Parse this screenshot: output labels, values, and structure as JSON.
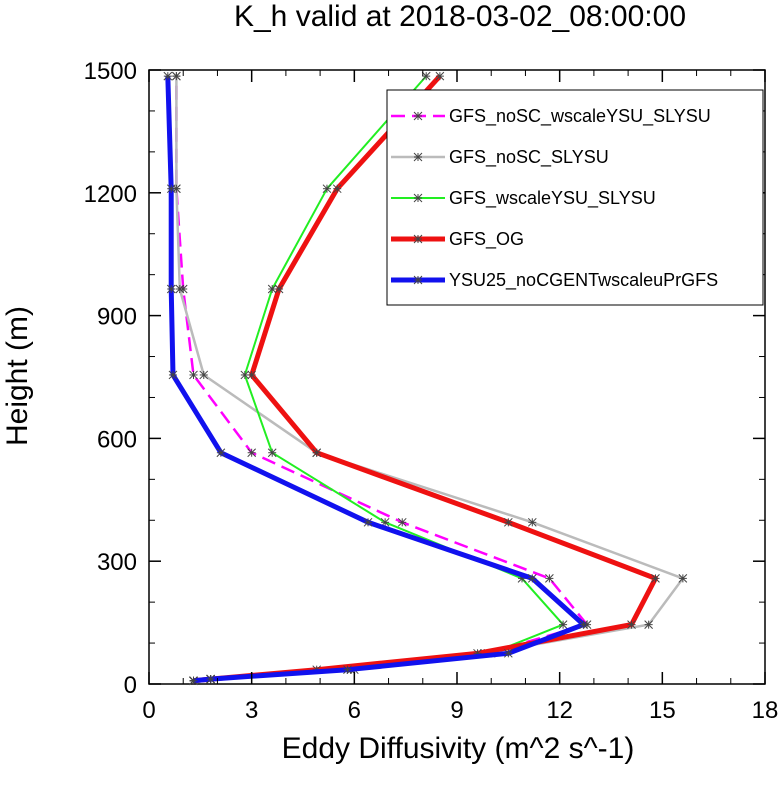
{
  "chart_data": {
    "type": "line",
    "title": "K_h valid at 2018-03-02_08:00:00",
    "xlabel": "Eddy Diffusivity (m^2 s^-1)",
    "ylabel": "Height (m)",
    "xlim": [
      0,
      18
    ],
    "ylim": [
      0,
      1500
    ],
    "xticks": [
      0,
      3,
      6,
      9,
      12,
      15,
      18
    ],
    "yticks": [
      0,
      300,
      600,
      900,
      1200,
      1500
    ],
    "legend_position": "top-right",
    "series": [
      {
        "name": "GFS_noSC_wscaleYSU_SLYSU",
        "color": "#ff00ff",
        "dash": "dashed",
        "width": "medium",
        "x": [
          1.3,
          1.8,
          5.9,
          9.9,
          12.8,
          11.7,
          7.4,
          3.0,
          1.3,
          1.0,
          0.8,
          0.8
        ],
        "y": [
          8,
          12,
          35,
          75,
          145,
          258,
          395,
          565,
          755,
          965,
          1210,
          1485
        ]
      },
      {
        "name": "GFS_noSC_SLYSU",
        "color": "#bbbbbb",
        "dash": "solid",
        "width": "medium",
        "x": [
          1.3,
          1.8,
          6.0,
          9.8,
          14.6,
          15.6,
          11.2,
          4.9,
          1.6,
          0.9,
          0.8,
          0.8
        ],
        "y": [
          8,
          12,
          35,
          75,
          145,
          258,
          395,
          565,
          755,
          965,
          1210,
          1485
        ]
      },
      {
        "name": "GFS_wscaleYSU_SLYSU",
        "color": "#22ee22",
        "dash": "solid",
        "width": "thin",
        "x": [
          1.3,
          1.8,
          5.9,
          10.0,
          12.1,
          10.9,
          6.9,
          3.6,
          2.8,
          3.6,
          5.2,
          8.1
        ],
        "y": [
          8,
          12,
          35,
          75,
          145,
          258,
          395,
          565,
          755,
          965,
          1210,
          1485
        ]
      },
      {
        "name": "GFS_OG",
        "color": "#ee1111",
        "dash": "solid",
        "width": "thick",
        "x": [
          1.3,
          1.8,
          4.9,
          9.6,
          14.1,
          14.8,
          10.5,
          4.9,
          3.0,
          3.8,
          5.5,
          8.5
        ],
        "y": [
          8,
          12,
          35,
          75,
          145,
          258,
          395,
          565,
          755,
          965,
          1210,
          1485
        ]
      },
      {
        "name": "YSU25_noCGENTwscaleuPrGFS",
        "color": "#1111ee",
        "dash": "solid",
        "width": "thick",
        "x": [
          1.3,
          1.8,
          5.8,
          10.5,
          12.7,
          11.2,
          6.4,
          2.1,
          0.7,
          0.65,
          0.65,
          0.55
        ],
        "y": [
          8,
          12,
          35,
          75,
          145,
          258,
          395,
          565,
          755,
          965,
          1210,
          1485
        ]
      }
    ]
  }
}
